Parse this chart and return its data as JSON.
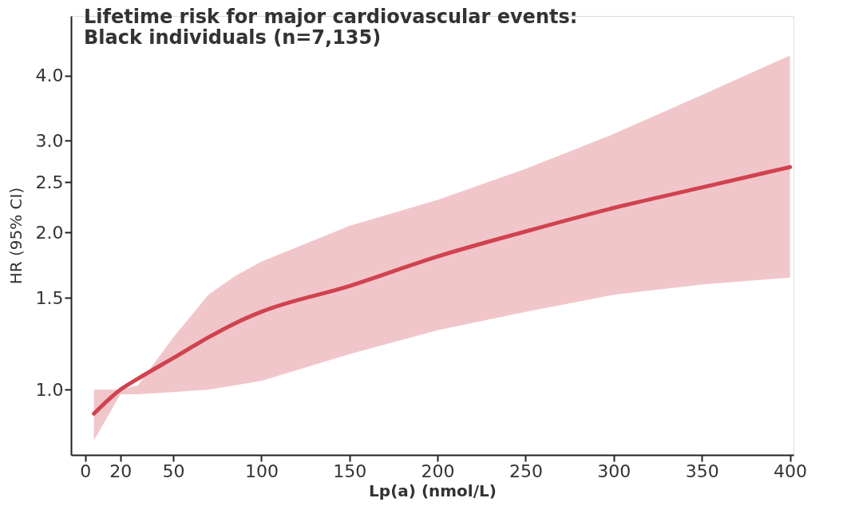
{
  "chart_data": {
    "type": "line",
    "title": "Lifetime risk for major cardiovascular events:\nBlack individuals (n=7,135)",
    "xlabel": "Lp(a) (nmol/L)",
    "ylabel": "HR (95% CI)",
    "log": "y",
    "grid": false,
    "marker": "none",
    "line_style": "solid",
    "xlim": [
      -8,
      402
    ],
    "xticks": [
      0,
      20,
      50,
      100,
      150,
      200,
      250,
      300,
      350,
      400
    ],
    "ylim": [
      0.75,
      5.2
    ],
    "yticks": [
      {
        "value": 1,
        "label": "1.0"
      },
      1.5,
      {
        "value": 2,
        "label": "2.0"
      },
      2.5,
      {
        "value": 3,
        "label": "3.0"
      },
      {
        "value": 4,
        "label": "4.0"
      }
    ],
    "series": [
      {
        "color": "#d0434f",
        "x": [
          5,
          20,
          30,
          50,
          70,
          85,
          100,
          150,
          200,
          250,
          300,
          350,
          400
        ],
        "values": [
          0.9,
          1.0,
          1.05,
          1.15,
          1.26,
          1.34,
          1.41,
          1.58,
          1.8,
          2.01,
          2.23,
          2.44,
          2.67
        ],
        "lower": [
          0.8,
          0.98,
          0.98,
          0.99,
          1.0,
          1.02,
          1.04,
          1.17,
          1.3,
          1.41,
          1.52,
          1.59,
          1.64
        ],
        "upper": [
          1.0,
          1.0,
          1.02,
          1.26,
          1.52,
          1.65,
          1.76,
          2.06,
          2.31,
          2.65,
          3.09,
          3.67,
          4.37
        ]
      }
    ]
  }
}
